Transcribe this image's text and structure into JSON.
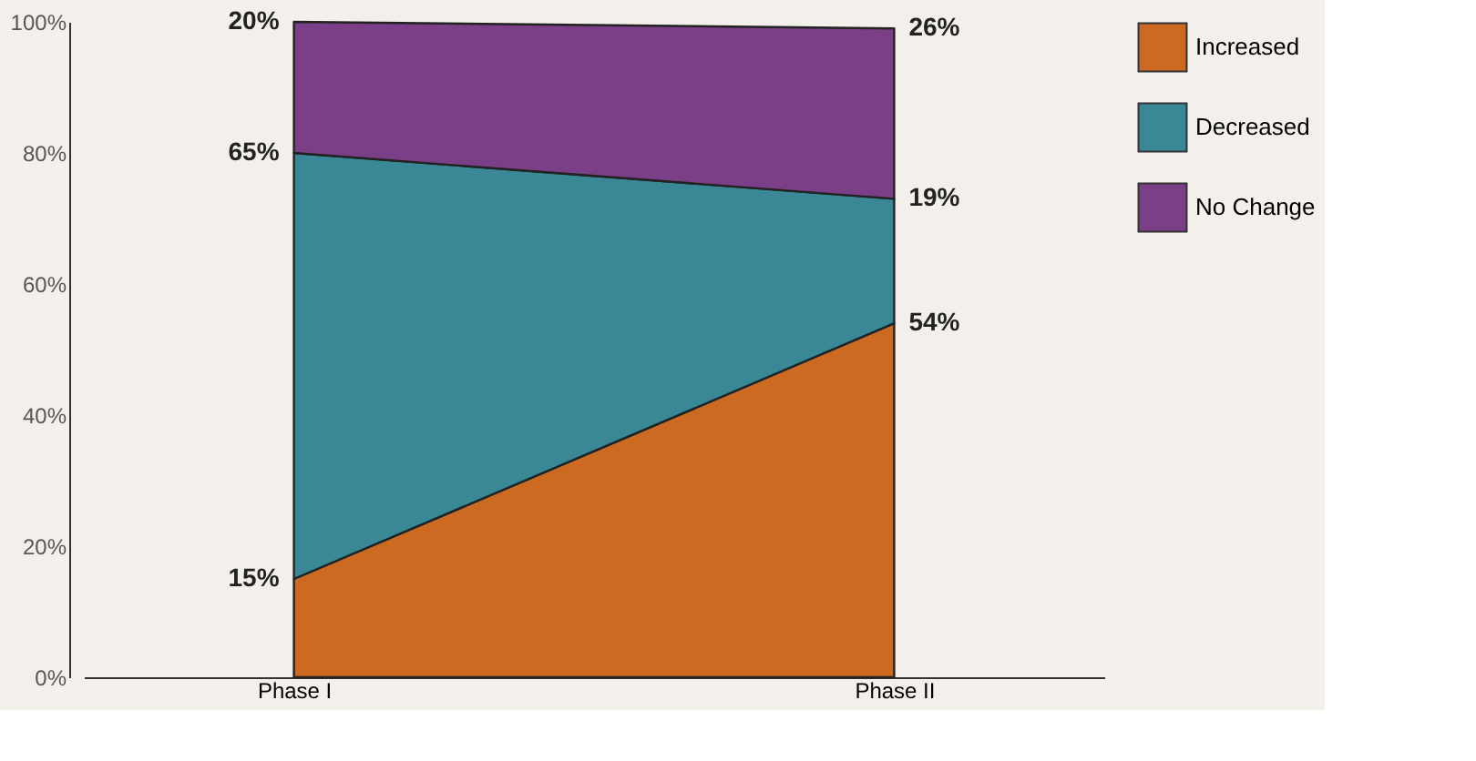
{
  "chart_data": {
    "type": "area",
    "stacked": true,
    "categories": [
      "Phase I",
      "Phase II"
    ],
    "series": [
      {
        "name": "Increased",
        "color": "#cc6a22",
        "values": [
          15,
          54
        ],
        "value_labels": [
          "15%",
          "54%"
        ]
      },
      {
        "name": "Decreased",
        "color": "#3a8895",
        "values": [
          65,
          19
        ],
        "value_labels": [
          "65%",
          "19%"
        ]
      },
      {
        "name": "No Change",
        "color": "#7a3f86",
        "values": [
          20,
          26
        ],
        "value_labels": [
          "20%",
          "26%"
        ]
      }
    ],
    "ylim": [
      0,
      100
    ],
    "yticks": [
      {
        "value": 0,
        "label": "0%"
      },
      {
        "value": 20,
        "label": "20%"
      },
      {
        "value": 40,
        "label": "40%"
      },
      {
        "value": 60,
        "label": "60%"
      },
      {
        "value": 80,
        "label": "80%"
      },
      {
        "value": 100,
        "label": "100%"
      }
    ],
    "grid": false,
    "legend": "right"
  }
}
